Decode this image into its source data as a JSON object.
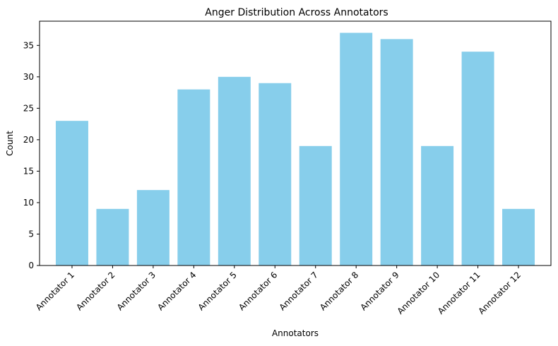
{
  "chart_data": {
    "type": "bar",
    "title": "Anger Distribution Across Annotators",
    "xlabel": "Annotators",
    "ylabel": "Count",
    "categories": [
      "Annotator 1",
      "Annotator 2",
      "Annotator 3",
      "Annotator 4",
      "Annotator 5",
      "Annotator 6",
      "Annotator 7",
      "Annotator 8",
      "Annotator 9",
      "Annotator 10",
      "Annotator 11",
      "Annotator 12"
    ],
    "values": [
      23,
      9,
      12,
      28,
      30,
      29,
      19,
      37,
      36,
      19,
      34,
      9
    ],
    "ylim": [
      0,
      38.85
    ],
    "yticks": [
      0,
      5,
      10,
      15,
      20,
      25,
      30,
      35
    ],
    "bar_color": "#87ceeb",
    "grid": false,
    "x_tick_rotation_deg": 45
  }
}
